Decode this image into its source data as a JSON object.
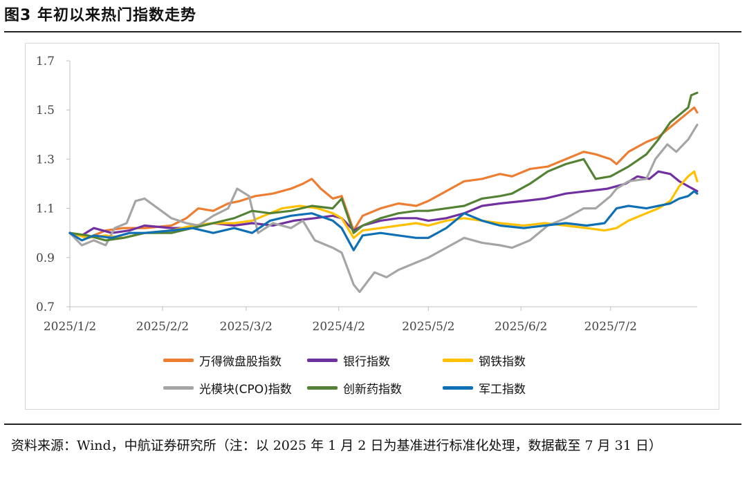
{
  "figure_title": "图3  年初以来热门指数走势",
  "source_note": "资料来源：Wind，中航证券研究所（注：以 2025 年 1 月 2 日为基准进行标准化处理，数据截至 7 月 31 日）",
  "chart_data": {
    "type": "line",
    "title": "",
    "xlabel": "",
    "ylabel": "",
    "ylim": [
      0.7,
      1.7
    ],
    "yticks": [
      "0.7",
      "0.9",
      "1.1",
      "1.3",
      "1.5",
      "1.7"
    ],
    "xlim": [
      "2025-01-02",
      "2025-07-31"
    ],
    "xticks": [
      {
        "date": "2025-01-02",
        "label": "2025/1/2"
      },
      {
        "date": "2025-02-02",
        "label": "2025/2/2"
      },
      {
        "date": "2025-03-02",
        "label": "2025/3/2"
      },
      {
        "date": "2025-04-02",
        "label": "2025/4/2"
      },
      {
        "date": "2025-05-02",
        "label": "2025/5/2"
      },
      {
        "date": "2025-06-02",
        "label": "2025/6/2"
      },
      {
        "date": "2025-07-02",
        "label": "2025/7/2"
      }
    ],
    "grid": false,
    "legend_position": "bottom",
    "series": [
      {
        "name": "万得微盘股指数",
        "color": "#ED7D31",
        "points": [
          [
            "2025-01-02",
            1.0
          ],
          [
            "2025-01-08",
            0.98
          ],
          [
            "2025-01-14",
            1.01
          ],
          [
            "2025-01-20",
            1.02
          ],
          [
            "2025-01-27",
            1.02
          ],
          [
            "2025-02-05",
            1.03
          ],
          [
            "2025-02-10",
            1.06
          ],
          [
            "2025-02-14",
            1.1
          ],
          [
            "2025-02-19",
            1.09
          ],
          [
            "2025-02-24",
            1.12
          ],
          [
            "2025-02-28",
            1.13
          ],
          [
            "2025-03-05",
            1.15
          ],
          [
            "2025-03-11",
            1.16
          ],
          [
            "2025-03-17",
            1.18
          ],
          [
            "2025-03-21",
            1.2
          ],
          [
            "2025-03-24",
            1.22
          ],
          [
            "2025-03-27",
            1.18
          ],
          [
            "2025-03-31",
            1.14
          ],
          [
            "2025-04-03",
            1.15
          ],
          [
            "2025-04-07",
            1.01
          ],
          [
            "2025-04-10",
            1.07
          ],
          [
            "2025-04-16",
            1.1
          ],
          [
            "2025-04-22",
            1.12
          ],
          [
            "2025-04-28",
            1.11
          ],
          [
            "2025-05-02",
            1.13
          ],
          [
            "2025-05-08",
            1.17
          ],
          [
            "2025-05-14",
            1.21
          ],
          [
            "2025-05-20",
            1.22
          ],
          [
            "2025-05-26",
            1.24
          ],
          [
            "2025-05-30",
            1.23
          ],
          [
            "2025-06-05",
            1.26
          ],
          [
            "2025-06-11",
            1.27
          ],
          [
            "2025-06-17",
            1.3
          ],
          [
            "2025-06-23",
            1.33
          ],
          [
            "2025-06-27",
            1.32
          ],
          [
            "2025-07-02",
            1.3
          ],
          [
            "2025-07-04",
            1.28
          ],
          [
            "2025-07-08",
            1.33
          ],
          [
            "2025-07-14",
            1.37
          ],
          [
            "2025-07-18",
            1.39
          ],
          [
            "2025-07-22",
            1.43
          ],
          [
            "2025-07-25",
            1.46
          ],
          [
            "2025-07-28",
            1.49
          ],
          [
            "2025-07-30",
            1.51
          ],
          [
            "2025-07-31",
            1.49
          ]
        ]
      },
      {
        "name": "银行指数",
        "color": "#7030A0",
        "points": [
          [
            "2025-01-02",
            1.0
          ],
          [
            "2025-01-06",
            0.99
          ],
          [
            "2025-01-10",
            1.02
          ],
          [
            "2025-01-16",
            1.0
          ],
          [
            "2025-01-22",
            1.01
          ],
          [
            "2025-01-27",
            1.03
          ],
          [
            "2025-02-05",
            1.02
          ],
          [
            "2025-02-12",
            1.02
          ],
          [
            "2025-02-19",
            1.04
          ],
          [
            "2025-02-26",
            1.03
          ],
          [
            "2025-03-04",
            1.04
          ],
          [
            "2025-03-11",
            1.03
          ],
          [
            "2025-03-18",
            1.05
          ],
          [
            "2025-03-25",
            1.06
          ],
          [
            "2025-03-31",
            1.07
          ],
          [
            "2025-04-03",
            1.06
          ],
          [
            "2025-04-07",
            1.01
          ],
          [
            "2025-04-10",
            1.03
          ],
          [
            "2025-04-16",
            1.05
          ],
          [
            "2025-04-22",
            1.06
          ],
          [
            "2025-04-28",
            1.06
          ],
          [
            "2025-05-02",
            1.05
          ],
          [
            "2025-05-08",
            1.06
          ],
          [
            "2025-05-14",
            1.08
          ],
          [
            "2025-05-20",
            1.11
          ],
          [
            "2025-05-26",
            1.12
          ],
          [
            "2025-06-03",
            1.13
          ],
          [
            "2025-06-10",
            1.14
          ],
          [
            "2025-06-17",
            1.16
          ],
          [
            "2025-06-24",
            1.17
          ],
          [
            "2025-07-01",
            1.18
          ],
          [
            "2025-07-07",
            1.2
          ],
          [
            "2025-07-11",
            1.23
          ],
          [
            "2025-07-15",
            1.22
          ],
          [
            "2025-07-18",
            1.25
          ],
          [
            "2025-07-22",
            1.24
          ],
          [
            "2025-07-25",
            1.21
          ],
          [
            "2025-07-28",
            1.19
          ],
          [
            "2025-07-31",
            1.17
          ]
        ]
      },
      {
        "name": "钢铁指数",
        "color": "#FFC000",
        "points": [
          [
            "2025-01-02",
            1.0
          ],
          [
            "2025-01-08",
            0.98
          ],
          [
            "2025-01-14",
            0.99
          ],
          [
            "2025-01-20",
            0.98
          ],
          [
            "2025-01-27",
            1.0
          ],
          [
            "2025-02-05",
            1.01
          ],
          [
            "2025-02-12",
            1.03
          ],
          [
            "2025-02-19",
            1.04
          ],
          [
            "2025-02-26",
            1.04
          ],
          [
            "2025-03-04",
            1.05
          ],
          [
            "2025-03-10",
            1.08
          ],
          [
            "2025-03-14",
            1.1
          ],
          [
            "2025-03-20",
            1.11
          ],
          [
            "2025-03-26",
            1.1
          ],
          [
            "2025-03-31",
            1.08
          ],
          [
            "2025-04-03",
            1.06
          ],
          [
            "2025-04-07",
            0.98
          ],
          [
            "2025-04-10",
            1.01
          ],
          [
            "2025-04-16",
            1.02
          ],
          [
            "2025-04-22",
            1.03
          ],
          [
            "2025-04-28",
            1.04
          ],
          [
            "2025-05-02",
            1.03
          ],
          [
            "2025-05-08",
            1.05
          ],
          [
            "2025-05-14",
            1.06
          ],
          [
            "2025-05-20",
            1.05
          ],
          [
            "2025-05-26",
            1.04
          ],
          [
            "2025-06-03",
            1.03
          ],
          [
            "2025-06-10",
            1.04
          ],
          [
            "2025-06-17",
            1.03
          ],
          [
            "2025-06-24",
            1.02
          ],
          [
            "2025-06-30",
            1.01
          ],
          [
            "2025-07-04",
            1.02
          ],
          [
            "2025-07-08",
            1.05
          ],
          [
            "2025-07-14",
            1.08
          ],
          [
            "2025-07-18",
            1.1
          ],
          [
            "2025-07-22",
            1.13
          ],
          [
            "2025-07-25",
            1.19
          ],
          [
            "2025-07-28",
            1.23
          ],
          [
            "2025-07-30",
            1.25
          ],
          [
            "2025-07-31",
            1.21
          ]
        ]
      },
      {
        "name": "光模块(CPO)指数",
        "color": "#A5A5A5",
        "points": [
          [
            "2025-01-02",
            1.0
          ],
          [
            "2025-01-06",
            0.95
          ],
          [
            "2025-01-10",
            0.97
          ],
          [
            "2025-01-14",
            0.95
          ],
          [
            "2025-01-17",
            1.02
          ],
          [
            "2025-01-21",
            1.04
          ],
          [
            "2025-01-24",
            1.13
          ],
          [
            "2025-01-27",
            1.14
          ],
          [
            "2025-02-05",
            1.06
          ],
          [
            "2025-02-10",
            1.04
          ],
          [
            "2025-02-14",
            1.03
          ],
          [
            "2025-02-19",
            1.07
          ],
          [
            "2025-02-24",
            1.1
          ],
          [
            "2025-02-27",
            1.18
          ],
          [
            "2025-03-03",
            1.15
          ],
          [
            "2025-03-06",
            1.0
          ],
          [
            "2025-03-11",
            1.04
          ],
          [
            "2025-03-17",
            1.02
          ],
          [
            "2025-03-21",
            1.05
          ],
          [
            "2025-03-25",
            0.97
          ],
          [
            "2025-03-31",
            0.94
          ],
          [
            "2025-04-03",
            0.92
          ],
          [
            "2025-04-07",
            0.79
          ],
          [
            "2025-04-09",
            0.76
          ],
          [
            "2025-04-14",
            0.84
          ],
          [
            "2025-04-18",
            0.82
          ],
          [
            "2025-04-22",
            0.85
          ],
          [
            "2025-04-28",
            0.88
          ],
          [
            "2025-05-02",
            0.9
          ],
          [
            "2025-05-08",
            0.94
          ],
          [
            "2025-05-14",
            0.98
          ],
          [
            "2025-05-20",
            0.96
          ],
          [
            "2025-05-26",
            0.95
          ],
          [
            "2025-05-30",
            0.94
          ],
          [
            "2025-06-05",
            0.97
          ],
          [
            "2025-06-11",
            1.03
          ],
          [
            "2025-06-17",
            1.06
          ],
          [
            "2025-06-23",
            1.1
          ],
          [
            "2025-06-27",
            1.1
          ],
          [
            "2025-07-02",
            1.15
          ],
          [
            "2025-07-04",
            1.18
          ],
          [
            "2025-07-08",
            1.21
          ],
          [
            "2025-07-14",
            1.22
          ],
          [
            "2025-07-17",
            1.3
          ],
          [
            "2025-07-21",
            1.36
          ],
          [
            "2025-07-24",
            1.33
          ],
          [
            "2025-07-28",
            1.38
          ],
          [
            "2025-07-31",
            1.44
          ]
        ]
      },
      {
        "name": "创新药指数",
        "color": "#548235",
        "points": [
          [
            "2025-01-02",
            1.0
          ],
          [
            "2025-01-08",
            0.99
          ],
          [
            "2025-01-14",
            0.97
          ],
          [
            "2025-01-20",
            0.98
          ],
          [
            "2025-01-27",
            1.0
          ],
          [
            "2025-02-05",
            1.0
          ],
          [
            "2025-02-12",
            1.02
          ],
          [
            "2025-02-19",
            1.04
          ],
          [
            "2025-02-26",
            1.06
          ],
          [
            "2025-03-04",
            1.09
          ],
          [
            "2025-03-10",
            1.08
          ],
          [
            "2025-03-17",
            1.09
          ],
          [
            "2025-03-24",
            1.11
          ],
          [
            "2025-03-31",
            1.1
          ],
          [
            "2025-04-03",
            1.14
          ],
          [
            "2025-04-07",
            1.0
          ],
          [
            "2025-04-10",
            1.03
          ],
          [
            "2025-04-16",
            1.06
          ],
          [
            "2025-04-22",
            1.08
          ],
          [
            "2025-04-28",
            1.09
          ],
          [
            "2025-05-02",
            1.09
          ],
          [
            "2025-05-08",
            1.1
          ],
          [
            "2025-05-14",
            1.11
          ],
          [
            "2025-05-20",
            1.14
          ],
          [
            "2025-05-26",
            1.15
          ],
          [
            "2025-05-30",
            1.16
          ],
          [
            "2025-06-05",
            1.2
          ],
          [
            "2025-06-11",
            1.25
          ],
          [
            "2025-06-17",
            1.28
          ],
          [
            "2025-06-23",
            1.3
          ],
          [
            "2025-06-27",
            1.22
          ],
          [
            "2025-07-02",
            1.23
          ],
          [
            "2025-07-08",
            1.27
          ],
          [
            "2025-07-14",
            1.32
          ],
          [
            "2025-07-18",
            1.38
          ],
          [
            "2025-07-22",
            1.45
          ],
          [
            "2025-07-25",
            1.48
          ],
          [
            "2025-07-28",
            1.51
          ],
          [
            "2025-07-29",
            1.56
          ],
          [
            "2025-07-31",
            1.57
          ]
        ]
      },
      {
        "name": "军工指数",
        "color": "#0E6FB5",
        "points": [
          [
            "2025-01-02",
            1.0
          ],
          [
            "2025-01-06",
            0.97
          ],
          [
            "2025-01-10",
            0.99
          ],
          [
            "2025-01-16",
            0.98
          ],
          [
            "2025-01-22",
            1.0
          ],
          [
            "2025-01-27",
            1.0
          ],
          [
            "2025-02-05",
            1.01
          ],
          [
            "2025-02-12",
            1.02
          ],
          [
            "2025-02-19",
            1.0
          ],
          [
            "2025-02-26",
            1.02
          ],
          [
            "2025-03-04",
            1.0
          ],
          [
            "2025-03-10",
            1.05
          ],
          [
            "2025-03-17",
            1.07
          ],
          [
            "2025-03-24",
            1.08
          ],
          [
            "2025-03-31",
            1.05
          ],
          [
            "2025-04-03",
            1.02
          ],
          [
            "2025-04-07",
            0.93
          ],
          [
            "2025-04-10",
            0.99
          ],
          [
            "2025-04-16",
            1.0
          ],
          [
            "2025-04-22",
            0.99
          ],
          [
            "2025-04-28",
            0.98
          ],
          [
            "2025-05-02",
            0.98
          ],
          [
            "2025-05-08",
            1.02
          ],
          [
            "2025-05-14",
            1.08
          ],
          [
            "2025-05-20",
            1.05
          ],
          [
            "2025-05-26",
            1.03
          ],
          [
            "2025-06-03",
            1.02
          ],
          [
            "2025-06-10",
            1.03
          ],
          [
            "2025-06-17",
            1.04
          ],
          [
            "2025-06-24",
            1.03
          ],
          [
            "2025-06-30",
            1.04
          ],
          [
            "2025-07-04",
            1.1
          ],
          [
            "2025-07-08",
            1.11
          ],
          [
            "2025-07-14",
            1.1
          ],
          [
            "2025-07-18",
            1.11
          ],
          [
            "2025-07-22",
            1.12
          ],
          [
            "2025-07-25",
            1.14
          ],
          [
            "2025-07-28",
            1.15
          ],
          [
            "2025-07-30",
            1.17
          ],
          [
            "2025-07-31",
            1.16
          ]
        ]
      }
    ]
  }
}
